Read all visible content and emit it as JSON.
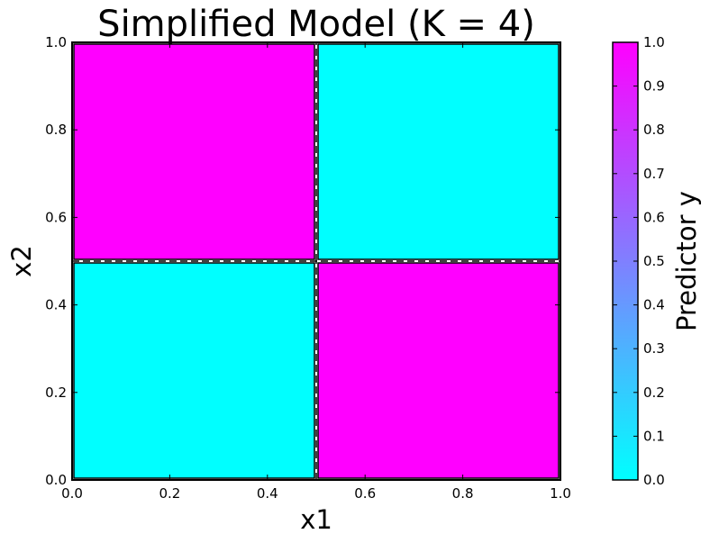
{
  "chart_data": {
    "type": "heatmap",
    "title": "Simplified Model (K = 4)",
    "xlabel": "x1",
    "ylabel": "x2",
    "xlim": [
      0.0,
      1.0
    ],
    "ylim": [
      0.0,
      1.0
    ],
    "x_ticks": [
      "0.0",
      "0.2",
      "0.4",
      "0.6",
      "0.8",
      "1.0"
    ],
    "y_ticks": [
      "0.0",
      "0.2",
      "0.4",
      "0.6",
      "0.8",
      "1.0"
    ],
    "regions": [
      {
        "x": [
          0.0,
          0.5
        ],
        "y": [
          0.5,
          1.0
        ],
        "value": 1.0
      },
      {
        "x": [
          0.5,
          1.0
        ],
        "y": [
          0.5,
          1.0
        ],
        "value": 0.0
      },
      {
        "x": [
          0.0,
          0.5
        ],
        "y": [
          0.0,
          0.5
        ],
        "value": 0.0
      },
      {
        "x": [
          0.5,
          1.0
        ],
        "y": [
          0.0,
          0.5
        ],
        "value": 1.0
      }
    ],
    "split_lines": [
      {
        "orientation": "vertical",
        "at": 0.5,
        "from": 0.5,
        "to": 1.0,
        "style": "dashed"
      },
      {
        "orientation": "horizontal",
        "at": 0.5,
        "from": 0.0,
        "to": 1.0,
        "style": "dashed"
      },
      {
        "orientation": "vertical",
        "at": 0.5,
        "from": 0.0,
        "to": 0.5,
        "style": "dashed"
      }
    ],
    "colorbar": {
      "label": "Predictor y",
      "range": [
        0.0,
        1.0
      ],
      "ticks": [
        "0.0",
        "0.1",
        "0.2",
        "0.3",
        "0.4",
        "0.5",
        "0.6",
        "0.7",
        "0.8",
        "0.9",
        "1.0"
      ],
      "colormap": "cool",
      "color_low": "#00ffff",
      "color_high": "#ff00ff"
    },
    "grid": false,
    "legend": "none"
  }
}
